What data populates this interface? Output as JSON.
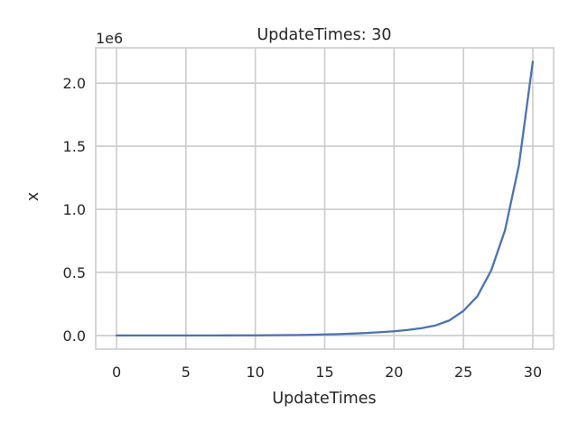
{
  "chart_data": {
    "type": "line",
    "title": "UpdateTimes: 30",
    "xlabel": "UpdateTimes",
    "ylabel": "x",
    "y_offset_label": "1e6",
    "xlim": [
      -1.5,
      31.5
    ],
    "ylim": [
      -0.108,
      2.28
    ],
    "x_ticks": [
      0,
      5,
      10,
      15,
      20,
      25,
      30
    ],
    "x_tick_labels": [
      "0",
      "5",
      "10",
      "15",
      "20",
      "25",
      "30"
    ],
    "y_ticks": [
      0.0,
      0.5,
      1.0,
      1.5,
      2.0
    ],
    "y_tick_labels": [
      "0.0",
      "0.5",
      "1.0",
      "1.5",
      "2.0"
    ],
    "grid": true,
    "series": [
      {
        "color": "#4c72b0",
        "x": [
          0,
          1,
          2,
          3,
          4,
          5,
          6,
          7,
          8,
          9,
          10,
          11,
          12,
          13,
          14,
          15,
          16,
          17,
          18,
          19,
          20,
          21,
          22,
          23,
          24,
          25,
          26,
          27,
          28,
          29,
          30
        ],
        "y": [
          0.0,
          0.0,
          0.0,
          0.0,
          0.0,
          0.0,
          0.0,
          0.0,
          0.0005,
          0.0008,
          0.0012,
          0.0018,
          0.0027,
          0.004,
          0.0057,
          0.008,
          0.011,
          0.015,
          0.02,
          0.026,
          0.033,
          0.044,
          0.058,
          0.08,
          0.12,
          0.195,
          0.31,
          0.515,
          0.835,
          1.35,
          2.17
        ]
      }
    ]
  }
}
